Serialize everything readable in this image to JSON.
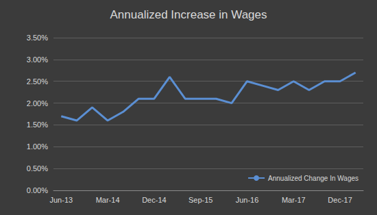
{
  "chart_data": {
    "type": "line",
    "title": "Annualized Increase in Wages",
    "categories": [
      "Jun-13",
      null,
      null,
      "Mar-14",
      null,
      null,
      "Dec-14",
      null,
      null,
      "Sep-15",
      null,
      null,
      "Jun-16",
      null,
      null,
      "Mar-17",
      null,
      null,
      "Dec-17",
      null
    ],
    "series": [
      {
        "name": "Annualized Change In Wages",
        "color": "#5b8fd3",
        "values": [
          1.7,
          1.6,
          1.9,
          1.6,
          1.8,
          2.1,
          2.1,
          2.6,
          2.1,
          2.1,
          2.1,
          2.0,
          2.5,
          2.4,
          2.3,
          2.5,
          2.3,
          2.5,
          2.5,
          2.7
        ]
      }
    ],
    "ylim": [
      0,
      3.5
    ],
    "yticks": [
      {
        "value": 0,
        "label": "0.00%"
      },
      {
        "value": 0.5,
        "label": "0.50%"
      },
      {
        "value": 1,
        "label": "1.00%"
      },
      {
        "value": 1.5,
        "label": "1.50%"
      },
      {
        "value": 2,
        "label": "2.00%"
      },
      {
        "value": 2.5,
        "label": "2.50%"
      },
      {
        "value": 3,
        "label": "3.00%"
      },
      {
        "value": 3.5,
        "label": "3.50%"
      }
    ],
    "grid": true,
    "legend": "lower right"
  }
}
